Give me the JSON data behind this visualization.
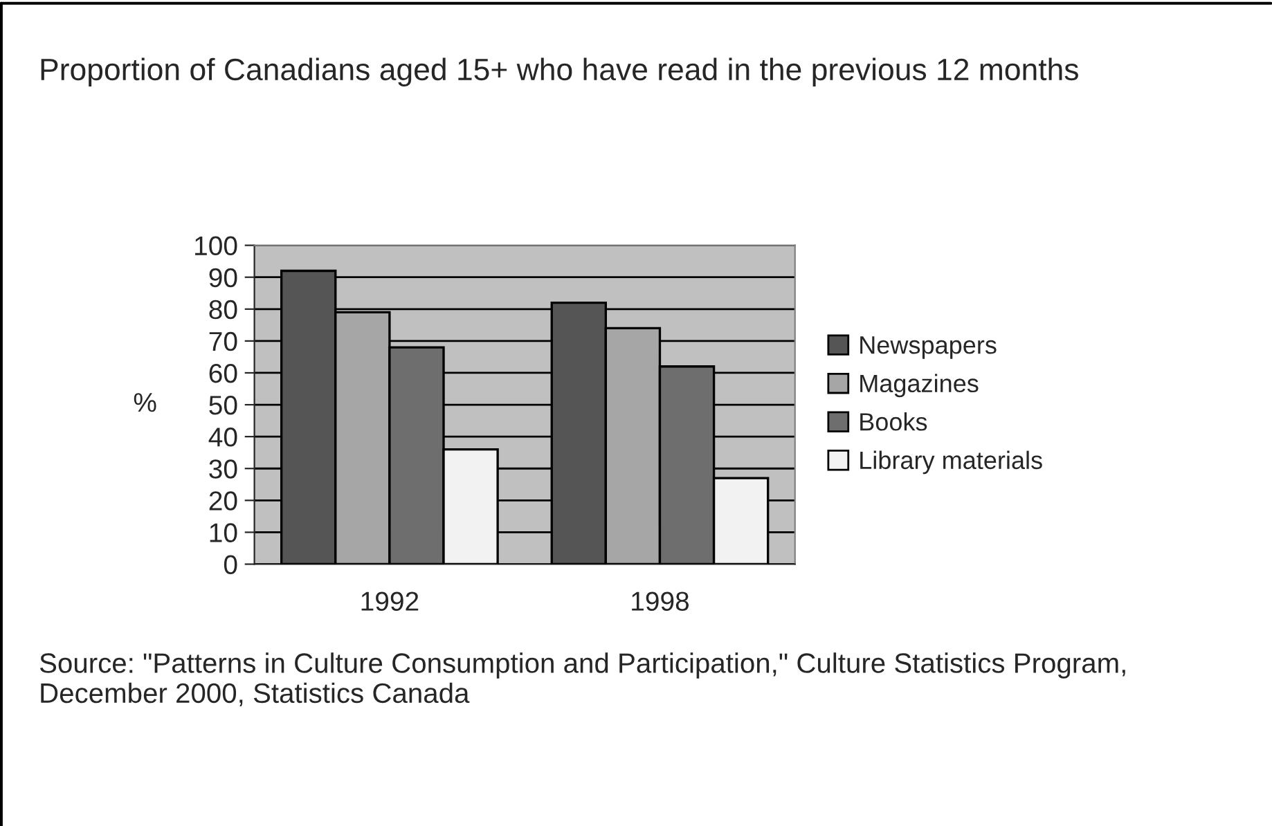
{
  "chart_data": {
    "type": "bar",
    "title": "Proportion of Canadians aged 15+ who have read in the previous 12 months",
    "ylabel": "%",
    "categories": [
      "1992",
      "1998"
    ],
    "series": [
      {
        "name": "Newspapers",
        "color": "#555555",
        "values": [
          92,
          82
        ]
      },
      {
        "name": "Magazines",
        "color": "#a6a6a6",
        "values": [
          79,
          74
        ]
      },
      {
        "name": "Books",
        "color": "#6e6e6e",
        "values": [
          68,
          62
        ]
      },
      {
        "name": "Library materials",
        "color": "#f2f2f2",
        "values": [
          36,
          27
        ]
      }
    ],
    "ylim": [
      0,
      100
    ],
    "yticks": [
      0,
      10,
      20,
      30,
      40,
      50,
      60,
      70,
      80,
      90,
      100
    ],
    "grid": "y",
    "legend": "right",
    "annotations": [
      "Source: \"Patterns in Culture Consumption and Participation,\" Culture Statistics Program, December 2000, Statistics Canada"
    ]
  }
}
